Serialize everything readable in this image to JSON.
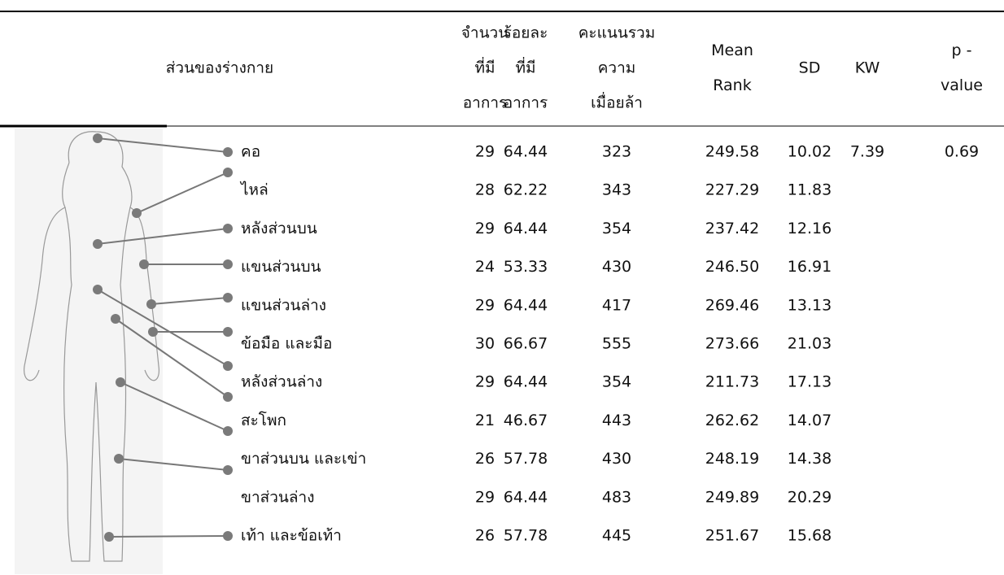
{
  "table": {
    "header": [
      [
        "ส่วนของร่างกาย"
      ],
      [
        "จำนวน",
        "ที่มี",
        "อาการ"
      ],
      [
        "ร้อยละ",
        "ที่มี",
        "อาการ"
      ],
      [
        "คะแนนรวม",
        "ความ",
        "เมื่อยล้า"
      ],
      [
        "Mean",
        "Rank"
      ],
      [
        "SD"
      ],
      [
        "KW"
      ],
      [
        "p -",
        "value"
      ]
    ],
    "rows": [
      [
        "คอ",
        "29",
        "64.44",
        "323",
        "249.58",
        "10.02",
        "7.39",
        "0.69"
      ],
      [
        "ไหล่",
        "28",
        "62.22",
        "343",
        "227.29",
        "11.83"
      ],
      [
        "หลังส่วนบน",
        "29",
        "64.44",
        "354",
        "237.42",
        "12.16"
      ],
      [
        "แขนส่วนบน",
        "24",
        "53.33",
        "430",
        "246.50",
        "16.91"
      ],
      [
        "แขนส่วนล่าง",
        "29",
        "64.44",
        "417",
        "269.46",
        "13.13"
      ],
      [
        "ข้อมือ และมือ",
        "30",
        "66.67",
        "555",
        "273.66",
        "21.03"
      ],
      [
        "หลังส่วนล่าง",
        "29",
        "64.44",
        "354",
        "211.73",
        "17.13"
      ],
      [
        "สะโพก",
        "21",
        "46.67",
        "443",
        "262.62",
        "14.07"
      ],
      [
        "ขาส่วนบน และเข่า",
        "26",
        "57.78",
        "430",
        "248.19",
        "14.38"
      ],
      [
        "ขาส่วนล่าง",
        "29",
        "64.44",
        "483",
        "249.89",
        "20.29"
      ],
      [
        "เท้า และข้อเท้า",
        "26",
        "57.78",
        "445",
        "251.67",
        "15.68"
      ]
    ]
  }
}
